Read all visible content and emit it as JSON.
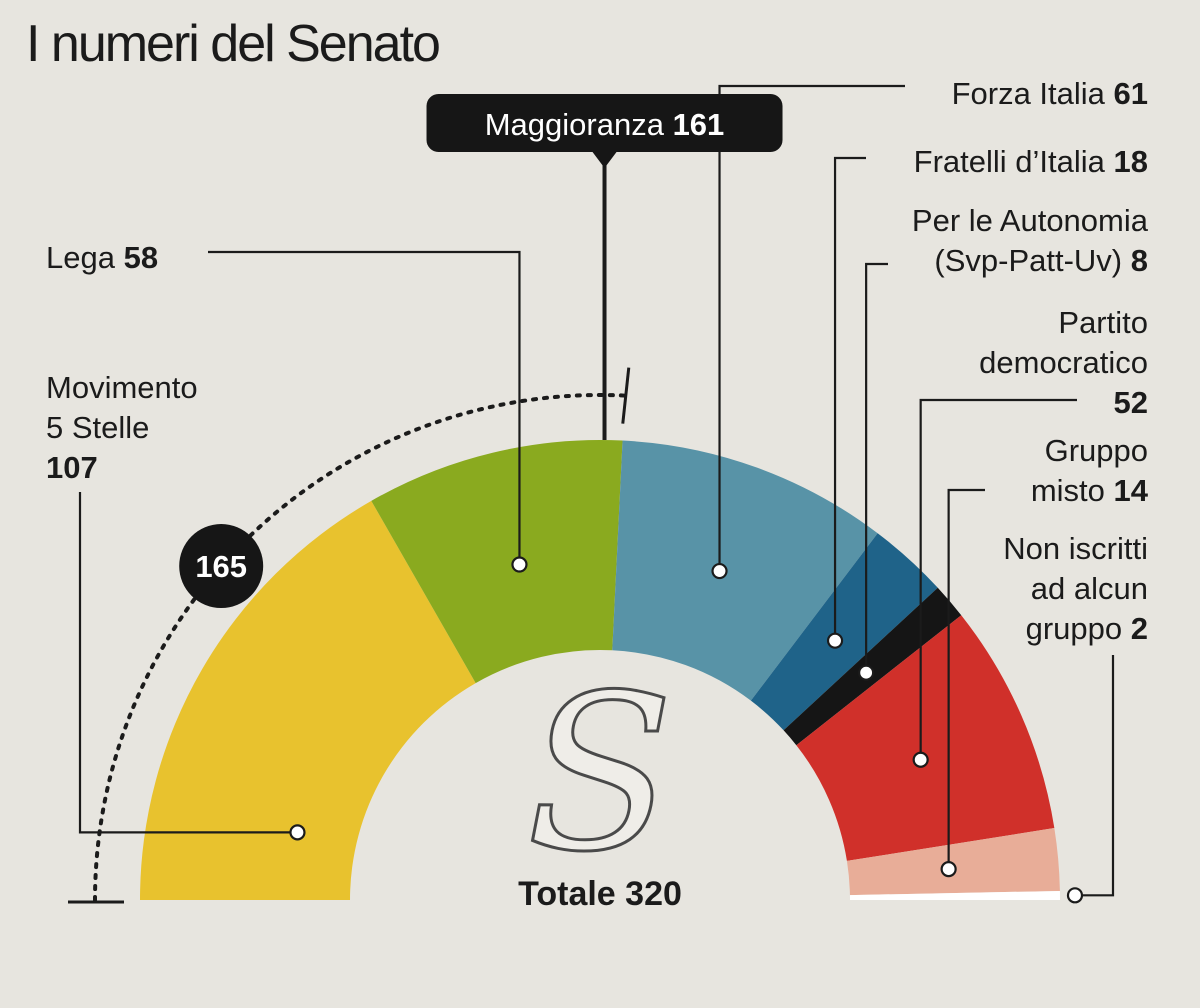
{
  "title": "I numeri del Senato",
  "chart_data": {
    "type": "semicircle-donut",
    "title": "I numeri del Senato",
    "total_label": "Totale",
    "total": 320,
    "majority": {
      "label": "Maggioranza",
      "value": 161
    },
    "coalition_marker": 165,
    "segments": [
      {
        "id": "m5s",
        "name_lines": [
          "Movimento",
          "5 Stelle"
        ],
        "value": 107,
        "color": "#e8c22e"
      },
      {
        "id": "lega",
        "name_lines": [
          "Lega"
        ],
        "value": 58,
        "color": "#8aaa1f"
      },
      {
        "id": "fi",
        "name_lines": [
          "Forza Italia"
        ],
        "value": 61,
        "color": "#5893a7"
      },
      {
        "id": "fdi",
        "name_lines": [
          "Fratelli d’Italia"
        ],
        "value": 18,
        "color": "#1f6389"
      },
      {
        "id": "aut",
        "name_lines": [
          "Per le Autonomia",
          "(Svp-Patt-Uv)"
        ],
        "value": 8,
        "color": "#151515"
      },
      {
        "id": "pd",
        "name_lines": [
          "Partito",
          "democratico"
        ],
        "value": 52,
        "color": "#d0302a"
      },
      {
        "id": "misto",
        "name_lines": [
          "Gruppo",
          "misto"
        ],
        "value": 14,
        "color": "#e8ad98"
      },
      {
        "id": "ni",
        "name_lines": [
          "Non iscritti",
          "ad alcun",
          "gruppo"
        ],
        "value": 2,
        "color": "#ffffff"
      }
    ]
  }
}
